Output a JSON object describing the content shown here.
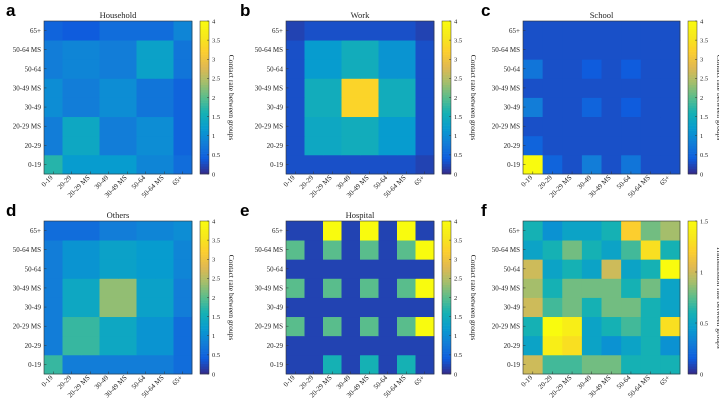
{
  "figure": {
    "colorbar_labels": {
      "contact": "Contact rate between groups",
      "transmission": "Transmission rate between groups"
    }
  },
  "chart_data": [
    {
      "type": "heatmap",
      "panel": "a",
      "title": "Household",
      "x_categories": [
        "0-19",
        "20-29",
        "20-29 MS",
        "30-49",
        "30-49 MS",
        "50-64",
        "50-64 MS",
        "65+"
      ],
      "y_categories": [
        "0-19",
        "20-29",
        "20-29 MS",
        "30-49",
        "30-49 MS",
        "50-64",
        "50-64 MS",
        "65+"
      ],
      "clim": [
        0,
        4
      ],
      "cticks": [
        0,
        0.5,
        1,
        1.5,
        2,
        2.5,
        3,
        3.5,
        4
      ],
      "colorbar_label": "Contact rate between groups",
      "values": [
        [
          1.7,
          1.2,
          1.2,
          1.2,
          1.2,
          0.9,
          0.9,
          0.6
        ],
        [
          0.8,
          1.4,
          1.4,
          0.8,
          0.8,
          1.0,
          1.0,
          0.5
        ],
        [
          0.8,
          1.4,
          1.4,
          0.8,
          0.8,
          1.0,
          1.0,
          0.5
        ],
        [
          1.0,
          0.8,
          0.8,
          1.0,
          1.0,
          0.7,
          0.7,
          0.5
        ],
        [
          1.0,
          0.8,
          0.8,
          1.0,
          1.0,
          0.7,
          0.7,
          0.5
        ],
        [
          0.8,
          0.9,
          0.9,
          0.8,
          0.8,
          1.3,
          1.3,
          0.7
        ],
        [
          0.8,
          0.9,
          0.9,
          0.8,
          0.8,
          1.3,
          1.3,
          0.7
        ],
        [
          0.5,
          0.4,
          0.4,
          0.6,
          0.6,
          0.6,
          0.6,
          0.9
        ]
      ]
    },
    {
      "type": "heatmap",
      "panel": "b",
      "title": "Work",
      "x_categories": [
        "0-19",
        "20-29",
        "20-29 MS",
        "30-49",
        "30-49 MS",
        "50-64",
        "50-64 MS",
        "65+"
      ],
      "y_categories": [
        "0-19",
        "20-29",
        "20-29 MS",
        "30-49",
        "30-49 MS",
        "50-64",
        "50-64 MS",
        "65+"
      ],
      "clim": [
        0,
        4
      ],
      "cticks": [
        0,
        0.5,
        1,
        1.5,
        2,
        2.5,
        3,
        3.5,
        4
      ],
      "colorbar_label": "Contact rate between groups",
      "values": [
        [
          0.3,
          0.3,
          0.3,
          0.3,
          0.3,
          0.3,
          0.3,
          0.2
        ],
        [
          0.3,
          1.4,
          1.4,
          1.5,
          1.5,
          1.2,
          1.2,
          0.3
        ],
        [
          0.3,
          1.4,
          1.4,
          1.5,
          1.5,
          1.2,
          1.2,
          0.3
        ],
        [
          0.3,
          1.5,
          1.5,
          3.3,
          3.3,
          1.5,
          1.5,
          0.3
        ],
        [
          0.3,
          1.5,
          1.5,
          3.3,
          3.3,
          1.5,
          1.5,
          0.3
        ],
        [
          0.3,
          1.2,
          1.2,
          1.5,
          1.5,
          1.1,
          1.1,
          0.3
        ],
        [
          0.3,
          1.2,
          1.2,
          1.5,
          1.5,
          1.1,
          1.1,
          0.3
        ],
        [
          0.2,
          0.3,
          0.3,
          0.3,
          0.3,
          0.3,
          0.3,
          0.2
        ]
      ]
    },
    {
      "type": "heatmap",
      "panel": "c",
      "title": "School",
      "x_categories": [
        "0-19",
        "20-29",
        "20-29 MS",
        "30-49",
        "30-49 MS",
        "50-64",
        "50-64 MS",
        "65+"
      ],
      "y_categories": [
        "0-19",
        "20-29",
        "20-29 MS",
        "30-49",
        "30-49 MS",
        "50-64",
        "50-64 MS",
        "65+"
      ],
      "clim": [
        0,
        4
      ],
      "cticks": [
        0,
        0.5,
        1,
        1.5,
        2,
        2.5,
        3,
        3.5,
        4
      ],
      "colorbar_label": "Contact rate between groups",
      "values": [
        [
          4.0,
          0.5,
          0.3,
          0.8,
          0.3,
          0.7,
          0.3,
          0.3
        ],
        [
          0.5,
          0.3,
          0.3,
          0.3,
          0.3,
          0.3,
          0.3,
          0.3
        ],
        [
          0.3,
          0.3,
          0.3,
          0.3,
          0.3,
          0.3,
          0.3,
          0.3
        ],
        [
          0.8,
          0.3,
          0.3,
          0.5,
          0.3,
          0.4,
          0.3,
          0.3
        ],
        [
          0.3,
          0.3,
          0.3,
          0.3,
          0.3,
          0.3,
          0.3,
          0.3
        ],
        [
          0.7,
          0.3,
          0.3,
          0.4,
          0.3,
          0.4,
          0.3,
          0.3
        ],
        [
          0.3,
          0.3,
          0.3,
          0.3,
          0.3,
          0.3,
          0.3,
          0.3
        ],
        [
          0.3,
          0.3,
          0.3,
          0.3,
          0.3,
          0.3,
          0.3,
          0.3
        ]
      ]
    },
    {
      "type": "heatmap",
      "panel": "d",
      "title": "Others",
      "x_categories": [
        "0-19",
        "20-29",
        "20-29 MS",
        "30-49",
        "30-49 MS",
        "50-64",
        "50-64 MS",
        "65+"
      ],
      "y_categories": [
        "0-19",
        "20-29",
        "20-29 MS",
        "30-49",
        "30-49 MS",
        "50-64",
        "50-64 MS",
        "65+"
      ],
      "clim": [
        0,
        4
      ],
      "cticks": [
        0,
        0.5,
        1,
        1.5,
        2,
        2.5,
        3,
        3.5,
        4
      ],
      "colorbar_label": "Contact rate between groups",
      "values": [
        [
          1.8,
          0.8,
          0.8,
          0.8,
          0.8,
          0.8,
          0.8,
          0.6
        ],
        [
          0.8,
          1.8,
          1.8,
          1.4,
          1.4,
          1.1,
          1.1,
          0.6
        ],
        [
          0.8,
          1.8,
          1.8,
          1.4,
          1.4,
          1.1,
          1.1,
          0.6
        ],
        [
          0.8,
          1.4,
          1.4,
          2.3,
          2.3,
          1.3,
          1.3,
          0.8
        ],
        [
          0.8,
          1.4,
          1.4,
          2.3,
          2.3,
          1.3,
          1.3,
          0.8
        ],
        [
          0.8,
          1.1,
          1.1,
          1.3,
          1.3,
          1.2,
          1.2,
          0.9
        ],
        [
          0.8,
          1.1,
          1.1,
          1.3,
          1.3,
          1.2,
          1.2,
          0.9
        ],
        [
          0.6,
          0.6,
          0.6,
          0.8,
          0.8,
          0.9,
          0.9,
          1.0
        ]
      ]
    },
    {
      "type": "heatmap",
      "panel": "e",
      "title": "Hospital",
      "x_categories": [
        "0-19",
        "20-29",
        "20-29 MS",
        "30-49",
        "30-49 MS",
        "50-64",
        "50-64 MS",
        "65+"
      ],
      "y_categories": [
        "0-19",
        "20-29",
        "20-29 MS",
        "30-49",
        "30-49 MS",
        "50-64",
        "50-64 MS",
        "65+"
      ],
      "clim": [
        0,
        4
      ],
      "cticks": [
        0,
        0.5,
        1,
        1.5,
        2,
        2.5,
        3,
        3.5,
        4
      ],
      "colorbar_label": "Contact rate between groups",
      "values": [
        [
          0.2,
          0.2,
          1.6,
          0.2,
          1.6,
          0.2,
          1.6,
          0.2
        ],
        [
          0.2,
          0.2,
          0.2,
          0.2,
          0.2,
          0.2,
          0.2,
          0.2
        ],
        [
          2.0,
          0.2,
          2.0,
          0.2,
          2.0,
          0.2,
          2.0,
          4.0
        ],
        [
          0.2,
          0.2,
          0.2,
          0.2,
          0.2,
          0.2,
          0.2,
          0.2
        ],
        [
          2.0,
          0.2,
          2.0,
          0.2,
          2.0,
          0.2,
          2.0,
          4.0
        ],
        [
          0.2,
          0.2,
          0.2,
          0.2,
          0.2,
          0.2,
          0.2,
          0.2
        ],
        [
          2.0,
          0.2,
          2.0,
          0.2,
          2.0,
          0.2,
          2.0,
          4.0
        ],
        [
          0.2,
          0.2,
          4.0,
          0.2,
          4.0,
          0.2,
          4.0,
          0.2
        ]
      ]
    },
    {
      "type": "heatmap",
      "panel": "f",
      "title": "",
      "x_categories": [
        "0-19",
        "20-29",
        "20-29 MS",
        "30-49",
        "30-49 MS",
        "50-64",
        "50-64 MS",
        "65+"
      ],
      "y_categories": [
        "0-19",
        "20-29",
        "20-29 MS",
        "30-49",
        "30-49 MS",
        "50-64",
        "50-64 MS",
        "65+"
      ],
      "clim": [
        0,
        1.5
      ],
      "cticks": [
        0,
        0.5,
        1,
        1.5
      ],
      "colorbar_label": "Transmission rate between groups",
      "values": [
        [
          1.0,
          0.7,
          0.7,
          0.8,
          0.8,
          0.6,
          0.6,
          0.6
        ],
        [
          0.5,
          1.4,
          1.3,
          0.5,
          0.4,
          0.5,
          0.6,
          0.4
        ],
        [
          0.6,
          1.5,
          1.4,
          0.5,
          0.6,
          0.7,
          0.6,
          1.3
        ],
        [
          1.0,
          0.7,
          0.8,
          0.6,
          0.8,
          0.8,
          0.6,
          0.5
        ],
        [
          0.9,
          0.6,
          0.8,
          0.8,
          0.8,
          0.6,
          0.8,
          0.5
        ],
        [
          1.0,
          0.5,
          0.6,
          0.5,
          1.0,
          0.5,
          0.6,
          1.5
        ],
        [
          0.5,
          0.6,
          0.8,
          0.6,
          0.5,
          0.7,
          1.3,
          0.6
        ],
        [
          0.6,
          0.4,
          0.5,
          0.5,
          0.6,
          1.2,
          0.8,
          0.9
        ]
      ]
    }
  ]
}
